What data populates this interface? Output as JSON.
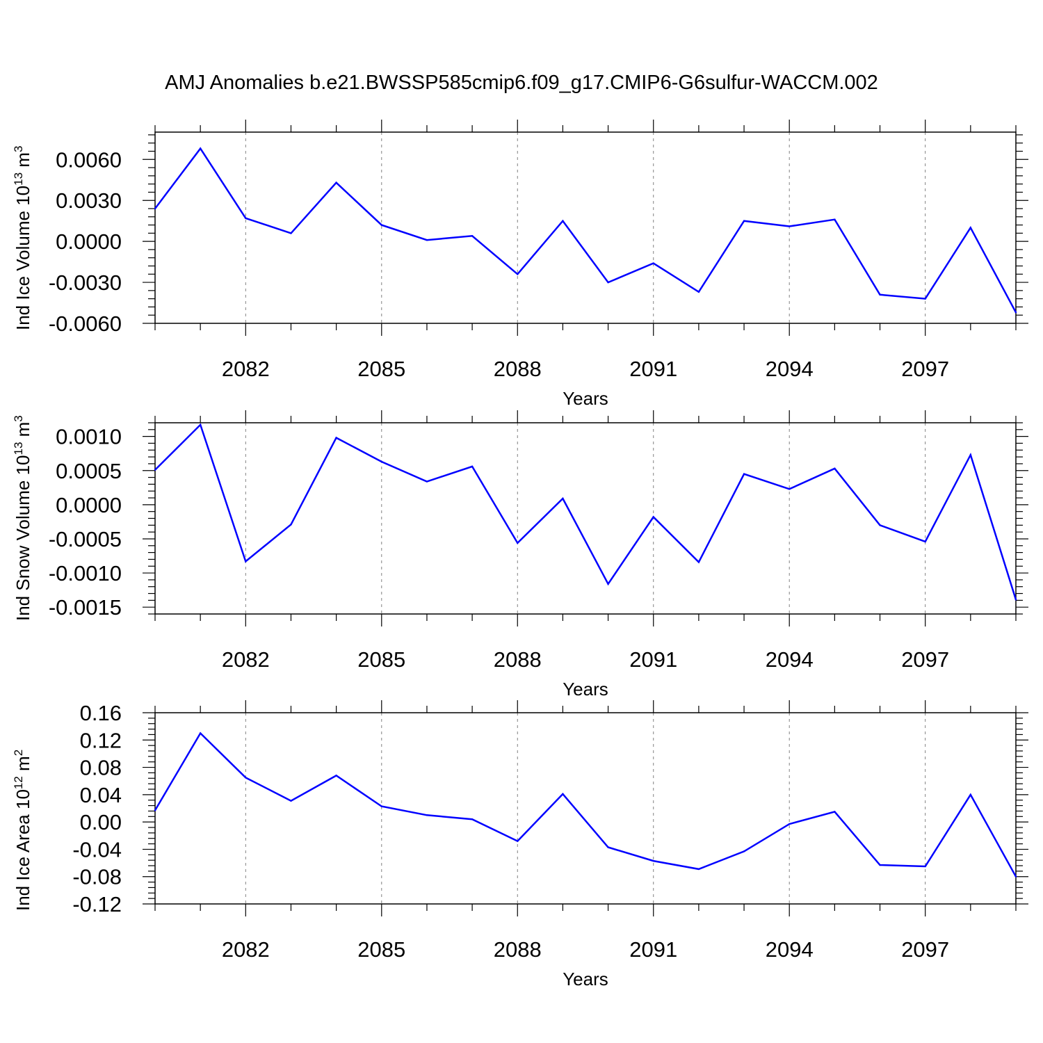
{
  "title": "AMJ Anomalies b.e21.BWSSP585cmip6.f09_g17.CMIP6-G6sulfur-WACCM.002",
  "colors": {
    "line": "#0000ff",
    "axis": "#000000",
    "grid": "#808080",
    "background": "#ffffff"
  },
  "chart_data": [
    {
      "type": "line",
      "xlabel": "Years",
      "ylabel": {
        "text": "Ind Ice Volume 10",
        "sup": "13",
        "unit": " m",
        "unit_sup": "3"
      },
      "xlim": [
        2080,
        2099
      ],
      "xticks": [
        2082,
        2085,
        2088,
        2091,
        2094,
        2097
      ],
      "xtick_labels": [
        "2082",
        "2085",
        "2088",
        "2091",
        "2094",
        "2097"
      ],
      "ylim": [
        -0.006,
        0.008
      ],
      "yticks": [
        0.006,
        0.003,
        0.0,
        -0.003,
        -0.006
      ],
      "ytick_labels": [
        "0.0060",
        "0.0030",
        "0.0000",
        "-0.0030",
        "-0.0060"
      ],
      "grid": "vertical dashed at major x ticks",
      "series": [
        {
          "x": [
            2080,
            2081,
            2082,
            2083,
            2084,
            2085,
            2086,
            2087,
            2088,
            2089,
            2090,
            2091,
            2092,
            2093,
            2094,
            2095,
            2096,
            2097,
            2098,
            2099
          ],
          "values": [
            0.0024,
            0.0068,
            0.0017,
            0.0006,
            0.0043,
            0.0012,
            0.0001,
            0.0004,
            -0.0024,
            0.0015,
            -0.003,
            -0.0016,
            -0.0037,
            0.0015,
            0.0011,
            0.0016,
            -0.0039,
            -0.0042,
            0.001,
            -0.0052
          ]
        }
      ]
    },
    {
      "type": "line",
      "xlabel": "Years",
      "ylabel": {
        "text": "Ind Snow Volume 10",
        "sup": "13",
        "unit": " m",
        "unit_sup": "3"
      },
      "xlim": [
        2080,
        2099
      ],
      "xticks": [
        2082,
        2085,
        2088,
        2091,
        2094,
        2097
      ],
      "xtick_labels": [
        "2082",
        "2085",
        "2088",
        "2091",
        "2094",
        "2097"
      ],
      "ylim": [
        -0.0016,
        0.0012
      ],
      "yticks": [
        0.001,
        0.0005,
        0.0,
        -0.0005,
        -0.001,
        -0.0015
      ],
      "ytick_labels": [
        "0.0010",
        "0.0005",
        "0.0000",
        "-0.0005",
        "-0.0010",
        "-0.0015"
      ],
      "grid": "vertical dashed at major x ticks",
      "series": [
        {
          "x": [
            2080,
            2081,
            2082,
            2083,
            2084,
            2085,
            2086,
            2087,
            2088,
            2089,
            2090,
            2091,
            2092,
            2093,
            2094,
            2095,
            2096,
            2097,
            2098,
            2099
          ],
          "values": [
            0.00051,
            0.00117,
            -0.00083,
            -0.00029,
            0.00098,
            0.00063,
            0.00034,
            0.00056,
            -0.00056,
            9e-05,
            -0.00116,
            -0.00018,
            -0.00084,
            0.00045,
            0.00023,
            0.00053,
            -0.0003,
            -0.00054,
            0.00073,
            -0.00139
          ]
        }
      ]
    },
    {
      "type": "line",
      "xlabel": "Years",
      "ylabel": {
        "text": "Ind Ice Area 10",
        "sup": "12",
        "unit": " m",
        "unit_sup": "2"
      },
      "xlim": [
        2080,
        2099
      ],
      "xticks": [
        2082,
        2085,
        2088,
        2091,
        2094,
        2097
      ],
      "xtick_labels": [
        "2082",
        "2085",
        "2088",
        "2091",
        "2094",
        "2097"
      ],
      "ylim": [
        -0.12,
        0.16
      ],
      "yticks": [
        0.16,
        0.12,
        0.08,
        0.04,
        0.0,
        -0.04,
        -0.08,
        -0.12
      ],
      "ytick_labels": [
        "0.16",
        "0.12",
        "0.08",
        "0.04",
        "0.00",
        "-0.04",
        "-0.08",
        "-0.12"
      ],
      "grid": "vertical dashed at major x ticks",
      "series": [
        {
          "x": [
            2080,
            2081,
            2082,
            2083,
            2084,
            2085,
            2086,
            2087,
            2088,
            2089,
            2090,
            2091,
            2092,
            2093,
            2094,
            2095,
            2096,
            2097,
            2098,
            2099
          ],
          "values": [
            0.017,
            0.13,
            0.065,
            0.031,
            0.068,
            0.023,
            0.01,
            0.004,
            -0.028,
            0.041,
            -0.037,
            -0.057,
            -0.069,
            -0.043,
            -0.003,
            0.015,
            -0.063,
            -0.065,
            0.04,
            -0.08
          ]
        }
      ]
    }
  ]
}
